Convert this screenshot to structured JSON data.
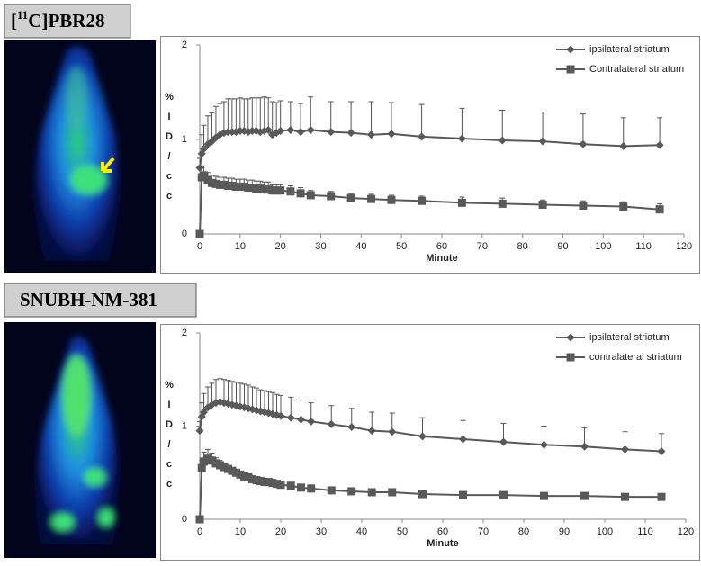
{
  "panels": [
    {
      "label_parts": [
        "[",
        "11",
        "C]PBR28"
      ]
    },
    {
      "label": "SNUBH-NM-381"
    }
  ],
  "chart_data": [
    {
      "type": "line",
      "xlabel": "Minute",
      "ylabel": [
        "%",
        "I",
        "D",
        "/",
        "c",
        "c"
      ],
      "x": [
        0,
        0.5,
        1,
        2,
        3,
        4,
        5,
        6,
        7,
        8,
        9,
        10,
        11,
        12,
        13,
        14,
        15,
        16,
        17,
        18,
        19,
        20,
        22.5,
        25,
        27.5,
        32.5,
        37.5,
        42.5,
        47.5,
        55,
        65,
        75,
        85,
        95,
        105,
        114
      ],
      "xlim": [
        0,
        120
      ],
      "xticks": [
        0,
        10,
        20,
        30,
        40,
        50,
        60,
        70,
        80,
        90,
        100,
        110,
        120
      ],
      "ylim": [
        0,
        2
      ],
      "yticks": [
        0,
        1,
        2
      ],
      "series": [
        {
          "name": "ipsilateral striatum",
          "color": "#595959",
          "marker": "diamond",
          "values": [
            0.7,
            0.85,
            0.9,
            0.95,
            0.98,
            1.02,
            1.05,
            1.07,
            1.08,
            1.08,
            1.08,
            1.09,
            1.09,
            1.08,
            1.09,
            1.09,
            1.08,
            1.09,
            1.1,
            1.05,
            1.07,
            1.09,
            1.1,
            1.08,
            1.1,
            1.08,
            1.07,
            1.05,
            1.06,
            1.03,
            1.01,
            0.99,
            0.98,
            0.95,
            0.93,
            0.94
          ],
          "errors": [
            0.1,
            0.2,
            0.25,
            0.3,
            0.3,
            0.33,
            0.33,
            0.33,
            0.35,
            0.35,
            0.35,
            0.35,
            0.34,
            0.35,
            0.35,
            0.35,
            0.36,
            0.36,
            0.34,
            0.35,
            0.32,
            0.32,
            0.3,
            0.3,
            0.35,
            0.32,
            0.33,
            0.35,
            0.33,
            0.34,
            0.32,
            0.32,
            0.31,
            0.32,
            0.3,
            0.29
          ]
        },
        {
          "name": "Contralateral striatum",
          "color": "#595959",
          "marker": "square",
          "values": [
            0,
            0.6,
            0.62,
            0.57,
            0.54,
            0.53,
            0.52,
            0.52,
            0.51,
            0.51,
            0.5,
            0.5,
            0.5,
            0.49,
            0.49,
            0.48,
            0.48,
            0.47,
            0.47,
            0.46,
            0.46,
            0.46,
            0.45,
            0.43,
            0.41,
            0.4,
            0.38,
            0.37,
            0.36,
            0.35,
            0.33,
            0.32,
            0.31,
            0.3,
            0.29,
            0.26
          ],
          "errors": [
            0,
            0.1,
            0.1,
            0.08,
            0.08,
            0.08,
            0.08,
            0.08,
            0.08,
            0.08,
            0.08,
            0.08,
            0.08,
            0.08,
            0.08,
            0.08,
            0.08,
            0.08,
            0.08,
            0.06,
            0.06,
            0.06,
            0.06,
            0.06,
            0.05,
            0.05,
            0.05,
            0.05,
            0.05,
            0.05,
            0.06,
            0.06,
            0.05,
            0.05,
            0.05,
            0.06
          ]
        }
      ]
    },
    {
      "type": "line",
      "xlabel": "Minute",
      "ylabel": [
        "%",
        "I",
        "D",
        "/",
        "c",
        "c"
      ],
      "x": [
        0,
        0.5,
        1,
        2,
        3,
        4,
        5,
        6,
        7,
        8,
        9,
        10,
        11,
        12,
        13,
        14,
        15,
        16,
        17,
        18,
        19,
        20,
        22.5,
        25,
        27.5,
        32.5,
        37.5,
        42.5,
        47.5,
        55,
        65,
        75,
        85,
        95,
        105,
        114
      ],
      "xlim": [
        0,
        120
      ],
      "xticks": [
        0,
        10,
        20,
        30,
        40,
        50,
        60,
        70,
        80,
        90,
        100,
        110,
        120
      ],
      "ylim": [
        0,
        2
      ],
      "yticks": [
        0,
        1,
        2
      ],
      "series": [
        {
          "name": "ipsilateral striatum",
          "color": "#595959",
          "marker": "diamond",
          "values": [
            0.95,
            1.1,
            1.15,
            1.2,
            1.23,
            1.25,
            1.26,
            1.25,
            1.24,
            1.23,
            1.22,
            1.21,
            1.2,
            1.19,
            1.18,
            1.17,
            1.16,
            1.15,
            1.14,
            1.13,
            1.12,
            1.11,
            1.09,
            1.07,
            1.05,
            1.02,
            0.99,
            0.95,
            0.94,
            0.89,
            0.86,
            0.83,
            0.8,
            0.78,
            0.75,
            0.73
          ],
          "errors": [
            0.1,
            0.15,
            0.2,
            0.22,
            0.23,
            0.25,
            0.25,
            0.25,
            0.25,
            0.25,
            0.25,
            0.25,
            0.25,
            0.25,
            0.24,
            0.24,
            0.23,
            0.23,
            0.23,
            0.23,
            0.22,
            0.22,
            0.22,
            0.21,
            0.2,
            0.2,
            0.2,
            0.2,
            0.2,
            0.2,
            0.2,
            0.2,
            0.2,
            0.2,
            0.19,
            0.19
          ]
        },
        {
          "name": "contralateral striatum",
          "color": "#595959",
          "marker": "square",
          "values": [
            0,
            0.55,
            0.62,
            0.65,
            0.63,
            0.6,
            0.58,
            0.56,
            0.54,
            0.52,
            0.5,
            0.48,
            0.46,
            0.45,
            0.43,
            0.42,
            0.41,
            0.4,
            0.4,
            0.39,
            0.38,
            0.37,
            0.36,
            0.34,
            0.33,
            0.31,
            0.3,
            0.29,
            0.29,
            0.27,
            0.26,
            0.26,
            0.25,
            0.25,
            0.24,
            0.24
          ],
          "errors": [
            0,
            0.08,
            0.1,
            0.1,
            0.08,
            0.06,
            0.05,
            0.04,
            0.03,
            0.03,
            0.03,
            0.02,
            0.02,
            0.02,
            0.02,
            0.02,
            0.02,
            0.02,
            0.02,
            0.02,
            0.02,
            0.02,
            0.02,
            0.02,
            0.02,
            0.02,
            0.02,
            0.02,
            0.02,
            0.02,
            0.02,
            0.02,
            0.02,
            0.02,
            0.02,
            0.02
          ]
        }
      ]
    }
  ]
}
